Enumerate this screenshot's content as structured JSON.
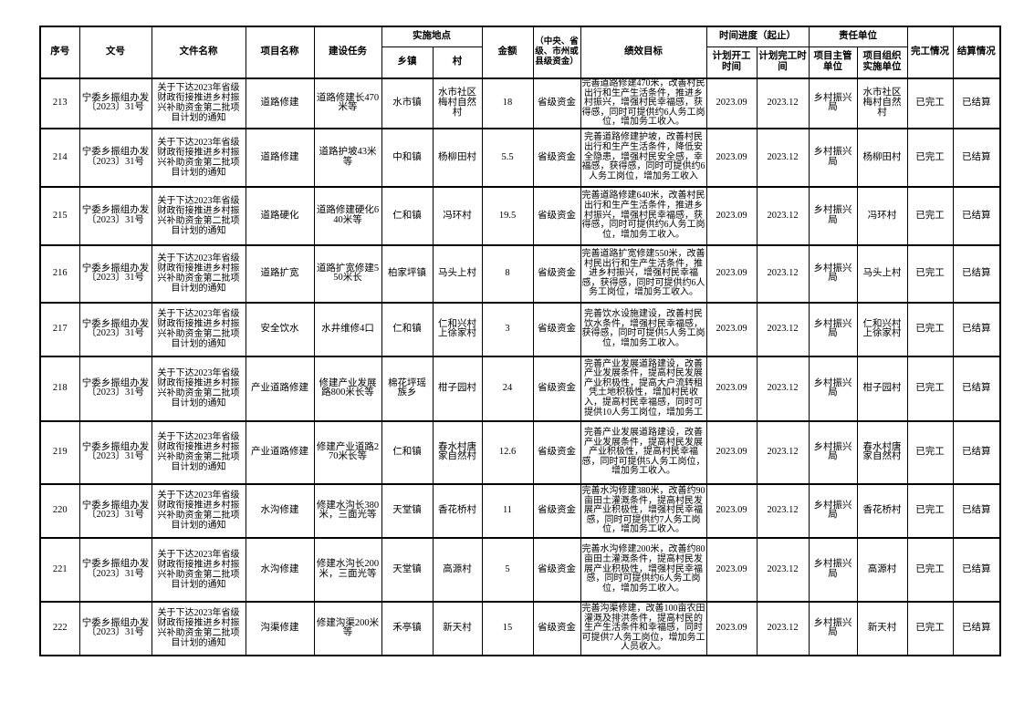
{
  "table": {
    "headers": {
      "seq": "序号",
      "doc_no": "文号",
      "doc_name": "文件名称",
      "project_name": "项目名称",
      "task": "建设任务",
      "location_group": "实施地点",
      "township": "乡镇",
      "village": "村",
      "amount": "金额",
      "fund_source": "（中央、省级、市州或县级资金）",
      "performance": "绩效目标",
      "schedule_group": "时间进度（起止）",
      "start_time": "计划开工时间",
      "end_time": "计划完工时间",
      "unit_group": "责任单位",
      "supervisor_unit": "项目主管单位",
      "impl_unit": "项目组织实施单位",
      "completion": "完工情况",
      "settlement": "结算情况"
    },
    "rows": [
      {
        "seq": "213",
        "doc_no": "宁委乡振组办发〔2023〕31号",
        "doc_name": "关于下达2023年省级财政衔接推进乡村振兴补助资金第二批项目计划的通知",
        "project_name": "道路修建",
        "task": "道路修建长470米等",
        "township": "水市镇",
        "village": "水市社区梅村自然村",
        "amount": "18",
        "fund_source": "省级资金",
        "performance": "完善道路修建470米，改善村民出行和生产生活条件，推进乡村振兴，增强村民幸福感，获得感，同时可提供约6人务工岗位，增加务工收入。",
        "start_time": "2023.09",
        "end_time": "2023.12",
        "supervisor_unit": "乡村振兴局",
        "impl_unit": "水市社区梅村自然村",
        "completion": "已完工",
        "settlement": "已结算"
      },
      {
        "seq": "214",
        "doc_no": "宁委乡振组办发〔2023〕31号",
        "doc_name": "关于下达2023年省级财政衔接推进乡村振兴补助资金第二批项目计划的通知",
        "project_name": "道路修建",
        "task": "道路护坡43米等",
        "township": "中和镇",
        "village": "杨柳田村",
        "amount": "5.5",
        "fund_source": "省级资金",
        "performance": "完善道路修建护坡，改善村民出行和生产生活条件，降低安全隐患，增强村民安全感，幸福感，获得感，同时可提供约6人务工岗位，增加务工收入",
        "start_time": "2023.09",
        "end_time": "2023.12",
        "supervisor_unit": "乡村振兴局",
        "impl_unit": "杨柳田村",
        "completion": "已完工",
        "settlement": "已结算"
      },
      {
        "seq": "215",
        "doc_no": "宁委乡振组办发〔2023〕31号",
        "doc_name": "关于下达2023年省级财政衔接推进乡村振兴补助资金第二批项目计划的通知",
        "project_name": "道路硬化",
        "task": "道路修建硬化640米等",
        "township": "仁和镇",
        "village": "冯环村",
        "amount": "19.5",
        "fund_source": "省级资金",
        "performance": "完善道路修建640米，改善村民出行和生产生活条件，推进乡村振兴，增强村民幸福感，获得感，同时可提供约6人务工岗位，增加务工收入。",
        "start_time": "2023.09",
        "end_time": "2023.12",
        "supervisor_unit": "乡村振兴局",
        "impl_unit": "冯环村",
        "completion": "已完工",
        "settlement": "已结算"
      },
      {
        "seq": "216",
        "doc_no": "宁委乡振组办发〔2023〕31号",
        "doc_name": "关于下达2023年省级财政衔接推进乡村振兴补助资金第二批项目计划的通知",
        "project_name": "道路扩宽",
        "task": "道路扩宽修建550米长",
        "township": "柏家坪镇",
        "village": "马头上村",
        "amount": "8",
        "fund_source": "省级资金",
        "performance": "完善道路扩宽修建550米，改善村民出行和生产生活条件，推进乡村振兴，增强村民幸福感，获得感，同时可提供约6人务工岗位，增加务工收入。",
        "start_time": "2023.09",
        "end_time": "2023.12",
        "supervisor_unit": "乡村振兴局",
        "impl_unit": "马头上村",
        "completion": "已完工",
        "settlement": "已结算"
      },
      {
        "seq": "217",
        "doc_no": "宁委乡振组办发〔2023〕31号",
        "doc_name": "关于下达2023年省级财政衔接推进乡村振兴补助资金第二批项目计划的通知",
        "project_name": "安全饮水",
        "task": "水井维修4口",
        "township": "仁和镇",
        "village": "仁和兴村上徐家村",
        "amount": "3",
        "fund_source": "省级资金",
        "performance": "完善饮水设施建设，改善村民饮水条件，增强村民幸福感，获得感，同时可提供5人务工岗位，增加务工收入。",
        "start_time": "2023.09",
        "end_time": "2023.12",
        "supervisor_unit": "乡村振兴局",
        "impl_unit": "仁和兴村上徐家村",
        "completion": "已完工",
        "settlement": "已结算"
      },
      {
        "seq": "218",
        "doc_no": "宁委乡振组办发〔2023〕31号",
        "doc_name": "关于下达2023年省级财政衔接推进乡村振兴补助资金第二批项目计划的通知",
        "project_name": "产业道路修建",
        "task": "修建产业发展路800米长等",
        "township": "棉花坪瑶族乡",
        "village": "柑子园村",
        "amount": "24",
        "fund_source": "省级资金",
        "performance": "完善产业发展道路建设，改善产业发展条件，提高村民发展产业积极性，提高大户流转租凭土地积极性，增加村民收入，提高村民幸福感，同时可提供10人务工岗位，增加务工",
        "start_time": "2023.09",
        "end_time": "2023.12",
        "supervisor_unit": "乡村振兴局",
        "impl_unit": "柑子园村",
        "completion": "已完工",
        "settlement": "已结算"
      },
      {
        "seq": "219",
        "doc_no": "宁委乡振组办发〔2023〕31号",
        "doc_name": "关于下达2023年省级财政衔接推进乡村振兴补助资金第二批项目计划的通知",
        "project_name": "产业道路修建",
        "task": "修建产业道路270米长等",
        "township": "仁和镇",
        "village": "春水村唐家自然村",
        "amount": "12.6",
        "fund_source": "省级资金",
        "performance": "完善产业发展道路建设，改善产业发展条件，提高村民发展产业积极性，提高村民幸福感，同时可提供5人务工岗位，增加务工收入。",
        "start_time": "2023.09",
        "end_time": "2023.12",
        "supervisor_unit": "乡村振兴局",
        "impl_unit": "春水村唐家自然村",
        "completion": "已完工",
        "settlement": "已结算"
      },
      {
        "seq": "220",
        "doc_no": "宁委乡振组办发〔2023〕31号",
        "doc_name": "关于下达2023年省级财政衔接推进乡村振兴补助资金第二批项目计划的通知",
        "project_name": "水沟修建",
        "task": "修建水沟长380米，三面光等",
        "township": "天堂镇",
        "village": "香花桥村",
        "amount": "11",
        "fund_source": "省级资金",
        "performance": "完善水沟修建380米，改善约90亩田土灌溉条件，提高村民发展产业积极性，增强村民幸福感，同时可提供约7人务工岗位，增加务工收入。",
        "start_time": "2023.09",
        "end_time": "2023.12",
        "supervisor_unit": "乡村振兴局",
        "impl_unit": "香花桥村",
        "completion": "已完工",
        "settlement": "已结算"
      },
      {
        "seq": "221",
        "doc_no": "宁委乡振组办发〔2023〕31号",
        "doc_name": "关于下达2023年省级财政衔接推进乡村振兴补助资金第二批项目计划的通知",
        "project_name": "水沟修建",
        "task": "修建水沟长200米，三面光等",
        "township": "天堂镇",
        "village": "高源村",
        "amount": "5",
        "fund_source": "省级资金",
        "performance": "完善水沟修建200米，改善约80亩田土灌溉条件，提高村民发展产业积极性，增强村民幸福感，同时可提供约6人务工岗位，增加务工收入。",
        "start_time": "2023.09",
        "end_time": "2023.12",
        "supervisor_unit": "乡村振兴局",
        "impl_unit": "高源村",
        "completion": "已完工",
        "settlement": "已结算"
      },
      {
        "seq": "222",
        "doc_no": "宁委乡振组办发〔2023〕31号",
        "doc_name": "关于下达2023年省级财政衔接推进乡村振兴补助资金第二批项目计划的通知",
        "project_name": "沟渠修建",
        "task": "修建沟渠200米等",
        "township": "禾亭镇",
        "village": "新天村",
        "amount": "15",
        "fund_source": "省级资金",
        "performance": "完善沟渠修建，改善100亩农田灌溉及排洪条件，提高村民的生产生活条件和幸福感，同时可提供7人务工岗位，增加务工人员收入。",
        "start_time": "2023.09",
        "end_time": "2023.12",
        "supervisor_unit": "乡村振兴局",
        "impl_unit": "新天村",
        "completion": "已完工",
        "settlement": "已结算"
      }
    ]
  }
}
